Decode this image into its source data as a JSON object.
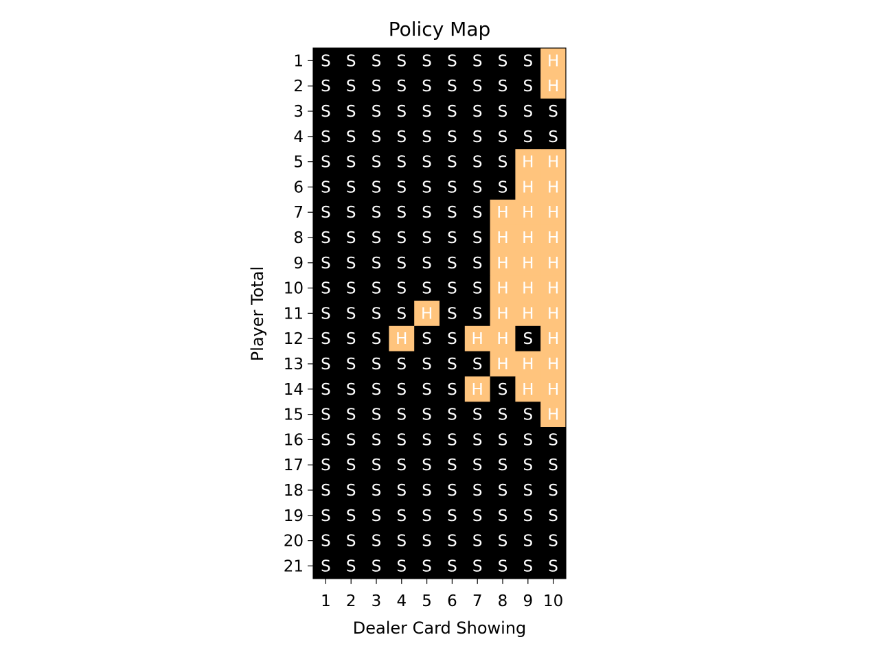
{
  "chart_data": {
    "type": "heatmap",
    "title": "Policy Map",
    "xlabel": "Dealer Card Showing",
    "ylabel": "Player Total",
    "x_categories": [
      "1",
      "2",
      "3",
      "4",
      "5",
      "6",
      "7",
      "8",
      "9",
      "10"
    ],
    "y_categories": [
      "1",
      "2",
      "3",
      "4",
      "5",
      "6",
      "7",
      "8",
      "9",
      "10",
      "11",
      "12",
      "13",
      "14",
      "15",
      "16",
      "17",
      "18",
      "19",
      "20",
      "21"
    ],
    "values": [
      [
        "S",
        "S",
        "S",
        "S",
        "S",
        "S",
        "S",
        "S",
        "S",
        "H"
      ],
      [
        "S",
        "S",
        "S",
        "S",
        "S",
        "S",
        "S",
        "S",
        "S",
        "H"
      ],
      [
        "S",
        "S",
        "S",
        "S",
        "S",
        "S",
        "S",
        "S",
        "S",
        "S"
      ],
      [
        "S",
        "S",
        "S",
        "S",
        "S",
        "S",
        "S",
        "S",
        "S",
        "S"
      ],
      [
        "S",
        "S",
        "S",
        "S",
        "S",
        "S",
        "S",
        "S",
        "H",
        "H"
      ],
      [
        "S",
        "S",
        "S",
        "S",
        "S",
        "S",
        "S",
        "S",
        "H",
        "H"
      ],
      [
        "S",
        "S",
        "S",
        "S",
        "S",
        "S",
        "S",
        "H",
        "H",
        "H"
      ],
      [
        "S",
        "S",
        "S",
        "S",
        "S",
        "S",
        "S",
        "H",
        "H",
        "H"
      ],
      [
        "S",
        "S",
        "S",
        "S",
        "S",
        "S",
        "S",
        "H",
        "H",
        "H"
      ],
      [
        "S",
        "S",
        "S",
        "S",
        "S",
        "S",
        "S",
        "H",
        "H",
        "H"
      ],
      [
        "S",
        "S",
        "S",
        "S",
        "H",
        "S",
        "S",
        "H",
        "H",
        "H"
      ],
      [
        "S",
        "S",
        "S",
        "H",
        "S",
        "S",
        "H",
        "H",
        "S",
        "H"
      ],
      [
        "S",
        "S",
        "S",
        "S",
        "S",
        "S",
        "S",
        "H",
        "H",
        "H"
      ],
      [
        "S",
        "S",
        "S",
        "S",
        "S",
        "S",
        "H",
        "S",
        "H",
        "H"
      ],
      [
        "S",
        "S",
        "S",
        "S",
        "S",
        "S",
        "S",
        "S",
        "S",
        "H"
      ],
      [
        "S",
        "S",
        "S",
        "S",
        "S",
        "S",
        "S",
        "S",
        "S",
        "S"
      ],
      [
        "S",
        "S",
        "S",
        "S",
        "S",
        "S",
        "S",
        "S",
        "S",
        "S"
      ],
      [
        "S",
        "S",
        "S",
        "S",
        "S",
        "S",
        "S",
        "S",
        "S",
        "S"
      ],
      [
        "S",
        "S",
        "S",
        "S",
        "S",
        "S",
        "S",
        "S",
        "S",
        "S"
      ],
      [
        "S",
        "S",
        "S",
        "S",
        "S",
        "S",
        "S",
        "S",
        "S",
        "S"
      ],
      [
        "S",
        "S",
        "S",
        "S",
        "S",
        "S",
        "S",
        "S",
        "S",
        "S"
      ]
    ],
    "colors": {
      "S": "#000000",
      "H": "#ffc47d"
    },
    "grid": false
  }
}
